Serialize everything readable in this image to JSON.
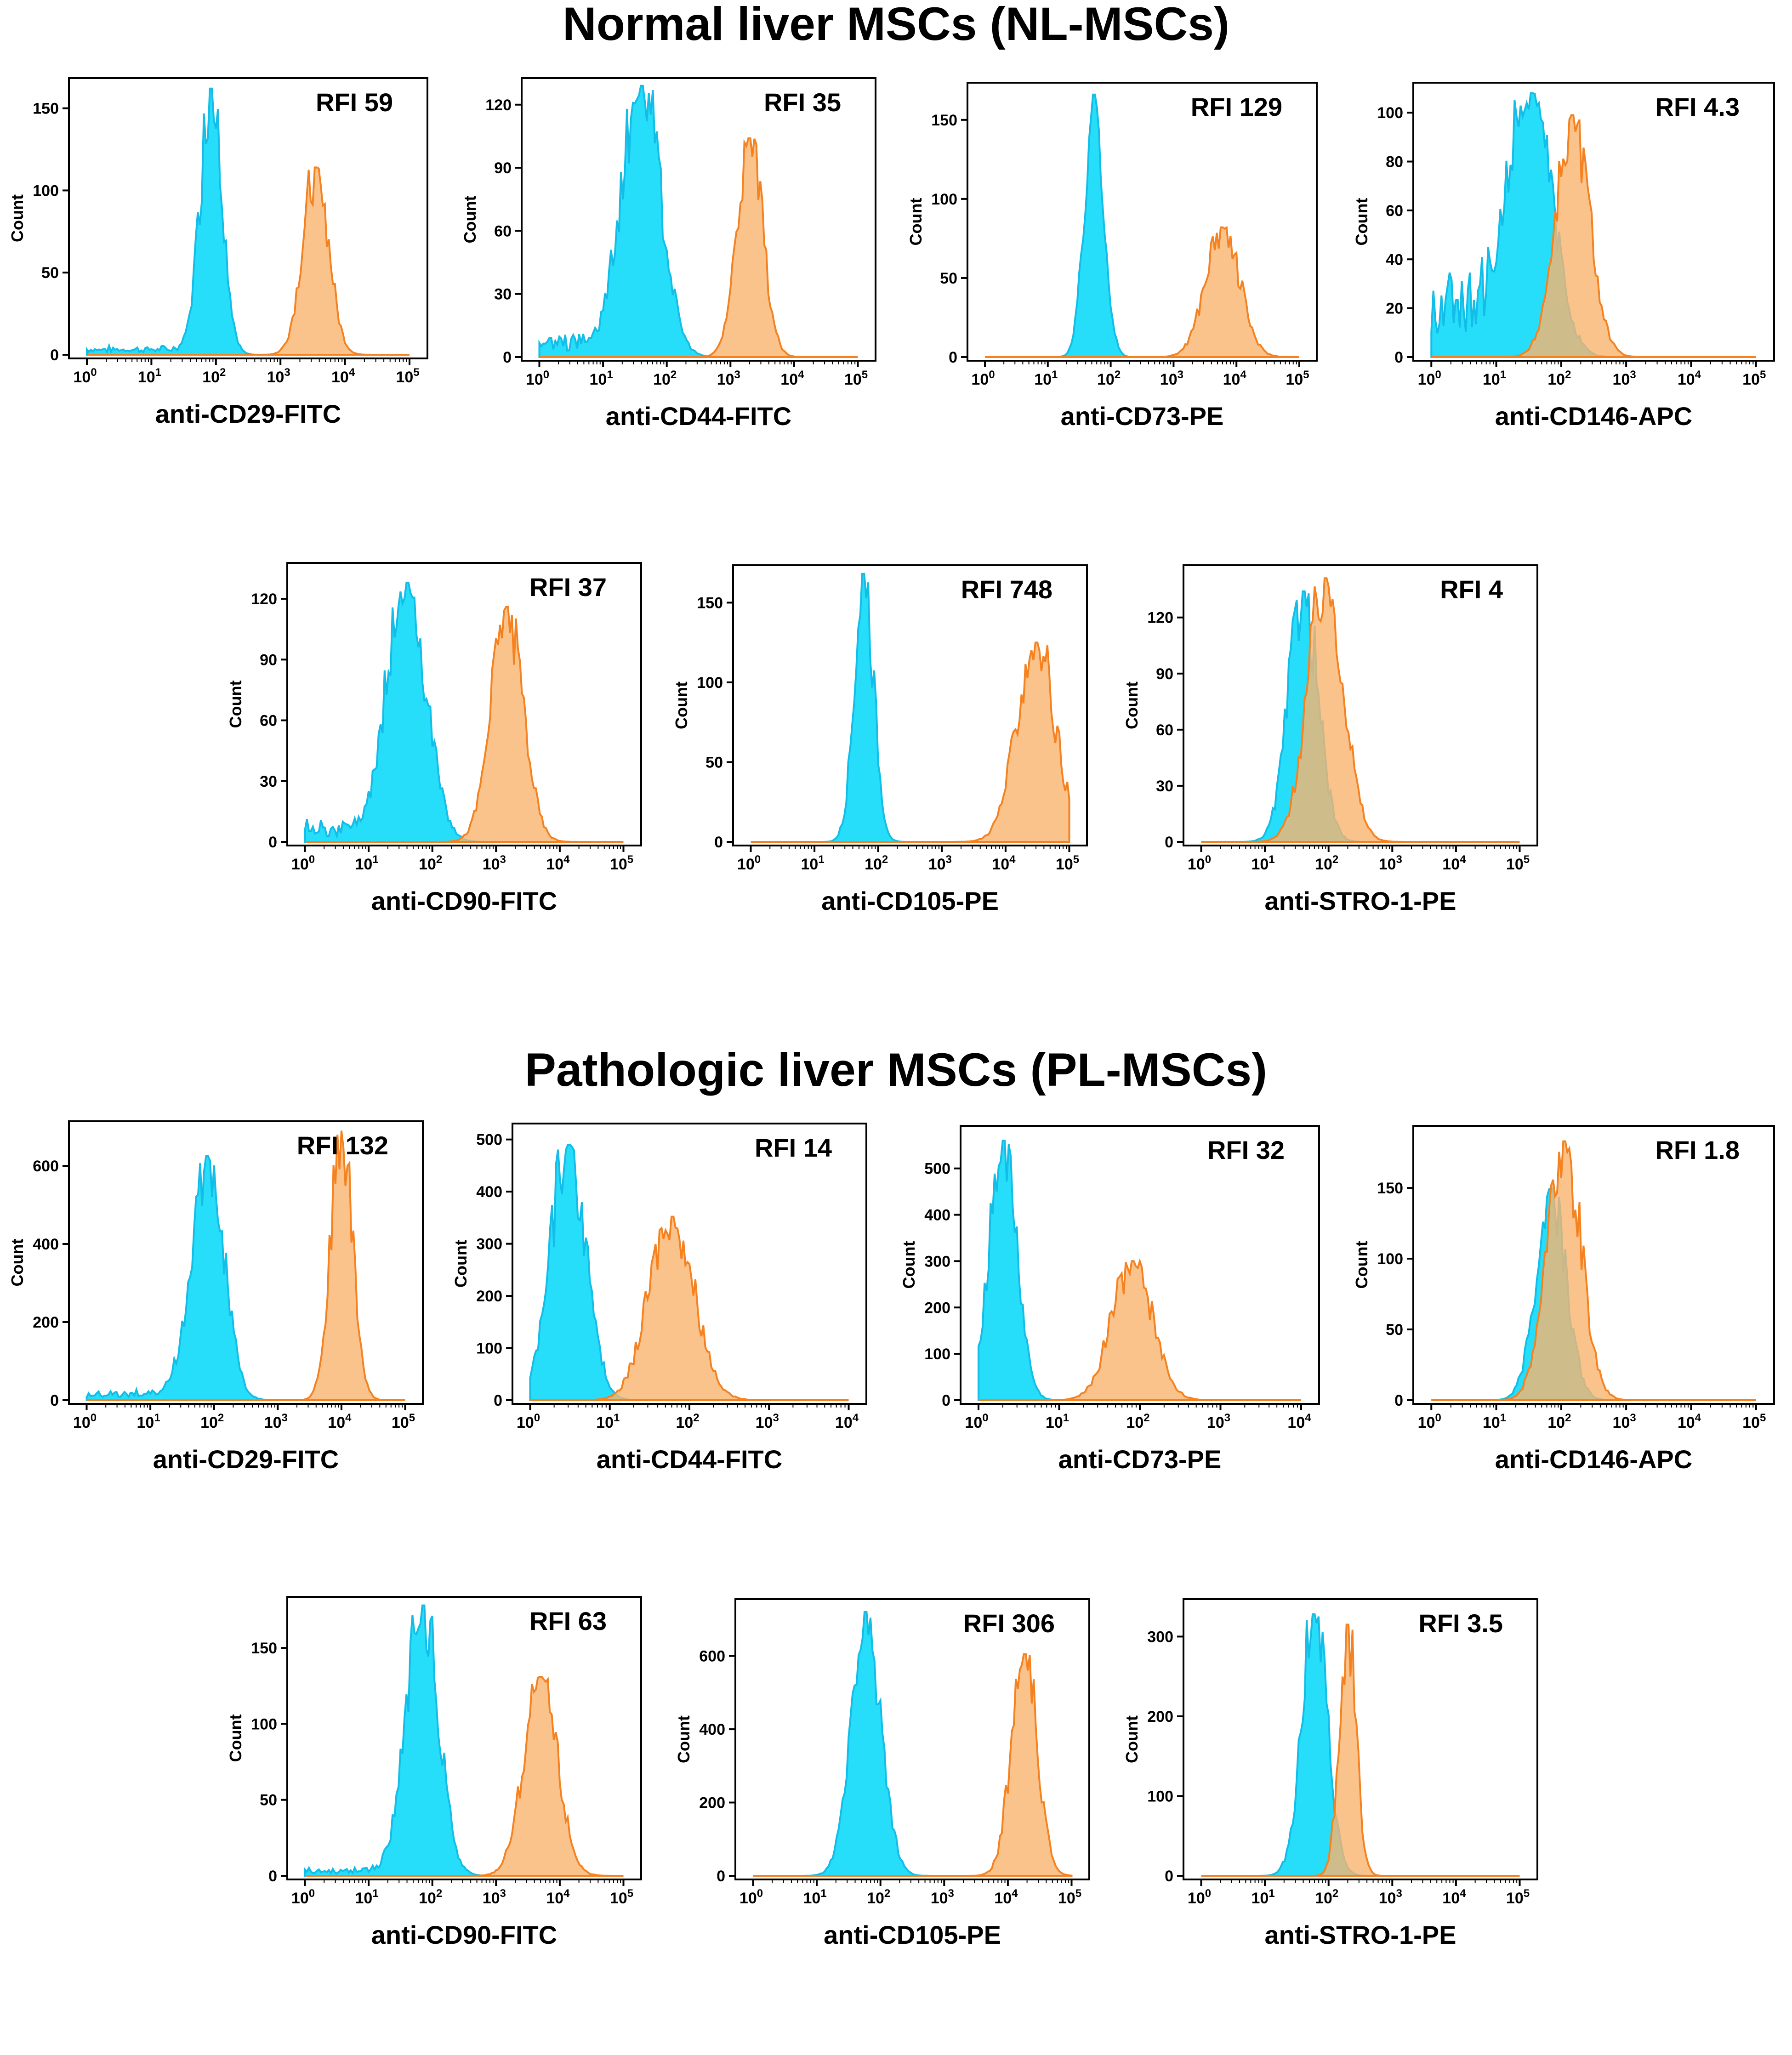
{
  "titles": {
    "normal": "Normal liver MSCs (NL-MSCs)",
    "pathologic": "Pathologic liver MSCs (PL-MSCs)"
  },
  "colors": {
    "control_fill": "#00d8f8",
    "control_line": "#12bde8",
    "stained_fill": "#f9b46f",
    "stained_line": "#f58220",
    "overlap": "#8fa990"
  },
  "chart_data": [
    {
      "type": "area",
      "group": "NL-MSCs",
      "annotation": "RFI 59",
      "xlabel": "anti-CD29-FITC",
      "ylabel": "Count",
      "x_scale": "log",
      "xlim": [
        1,
        100000
      ],
      "ylim": [
        0,
        165
      ],
      "yticks": [
        0,
        50,
        100,
        150
      ],
      "xticks": [
        1,
        10,
        100,
        1000,
        10000,
        100000
      ],
      "series": [
        {
          "role": "control",
          "peak_x": 85,
          "peak_y": 162,
          "spread": 0.17,
          "tail": 5
        },
        {
          "role": "stained",
          "peak_x": 3500,
          "peak_y": 114,
          "spread": 0.2,
          "tail": 0
        }
      ]
    },
    {
      "type": "area",
      "group": "NL-MSCs",
      "annotation": "RFI 35",
      "xlabel": "anti-CD44-FITC",
      "ylabel": "Count",
      "x_scale": "log",
      "xlim": [
        1,
        100000
      ],
      "ylim": [
        0,
        130
      ],
      "yticks": [
        0,
        30,
        60,
        90,
        120
      ],
      "xticks": [
        1,
        10,
        100,
        1000,
        10000,
        100000
      ],
      "series": [
        {
          "role": "control",
          "peak_x": 40,
          "peak_y": 129,
          "spread": 0.3,
          "tail": 10
        },
        {
          "role": "stained",
          "peak_x": 2000,
          "peak_y": 104,
          "spread": 0.2,
          "tail": 0
        }
      ]
    },
    {
      "type": "area",
      "group": "NL-MSCs",
      "annotation": "RFI 129",
      "xlabel": "anti-CD73-PE",
      "ylabel": "Count",
      "x_scale": "log",
      "xlim": [
        1,
        100000
      ],
      "ylim": [
        0,
        170
      ],
      "yticks": [
        0,
        50,
        100,
        150
      ],
      "xticks": [
        1,
        10,
        100,
        1000,
        10000,
        100000
      ],
      "series": [
        {
          "role": "control",
          "peak_x": 55,
          "peak_y": 166,
          "spread": 0.15,
          "tail": 0
        },
        {
          "role": "stained",
          "peak_x": 6000,
          "peak_y": 82,
          "spread": 0.27,
          "tail": 0
        }
      ]
    },
    {
      "type": "area",
      "group": "NL-MSCs",
      "annotation": "RFI 4.3",
      "xlabel": "anti-CD146-APC",
      "ylabel": "Count",
      "x_scale": "log",
      "xlim": [
        1,
        100000
      ],
      "ylim": [
        0,
        110
      ],
      "yticks": [
        0,
        20,
        40,
        60,
        80,
        100
      ],
      "xticks": [
        1,
        10,
        100,
        1000,
        10000,
        100000
      ],
      "series": [
        {
          "role": "control",
          "peak_x": 35,
          "peak_y": 108,
          "spread": 0.32,
          "tail": 30
        },
        {
          "role": "stained",
          "peak_x": 150,
          "peak_y": 99,
          "spread": 0.26,
          "tail": 0
        }
      ]
    },
    {
      "type": "area",
      "group": "NL-MSCs",
      "annotation": "RFI 37",
      "xlabel": "anti-CD90-FITC",
      "ylabel": "Count",
      "x_scale": "log",
      "xlim": [
        1,
        100000
      ],
      "ylim": [
        0,
        135
      ],
      "yticks": [
        0,
        30,
        60,
        90,
        120
      ],
      "xticks": [
        1,
        10,
        100,
        1000,
        10000,
        100000
      ],
      "series": [
        {
          "role": "control",
          "peak_x": 40,
          "peak_y": 128,
          "spread": 0.3,
          "tail": 10
        },
        {
          "role": "stained",
          "peak_x": 1500,
          "peak_y": 116,
          "spread": 0.25,
          "tail": 0
        }
      ]
    },
    {
      "type": "area",
      "group": "NL-MSCs",
      "annotation": "RFI 748",
      "xlabel": "anti-CD105-PE",
      "ylabel": "Count",
      "x_scale": "log",
      "xlim": [
        1,
        100000
      ],
      "ylim": [
        0,
        170
      ],
      "yticks": [
        0,
        50,
        100,
        150
      ],
      "xticks": [
        1,
        10,
        100,
        1000,
        10000,
        100000
      ],
      "series": [
        {
          "role": "control",
          "peak_x": 60,
          "peak_y": 168,
          "spread": 0.15,
          "tail": 0
        },
        {
          "role": "stained",
          "peak_x": 30000,
          "peak_y": 125,
          "spread": 0.3,
          "tail": 0
        }
      ]
    },
    {
      "type": "area",
      "group": "NL-MSCs",
      "annotation": "RFI 4",
      "xlabel": "anti-STRO-1-PE",
      "ylabel": "Count",
      "x_scale": "log",
      "xlim": [
        1,
        100000
      ],
      "ylim": [
        0,
        145
      ],
      "yticks": [
        0,
        30,
        60,
        90,
        120
      ],
      "xticks": [
        1,
        10,
        100,
        1000,
        10000,
        100000
      ],
      "series": [
        {
          "role": "control",
          "peak_x": 40,
          "peak_y": 134,
          "spread": 0.23,
          "tail": 0
        },
        {
          "role": "stained",
          "peak_x": 90,
          "peak_y": 141,
          "spread": 0.28,
          "tail": 0
        }
      ]
    },
    {
      "type": "area",
      "group": "PL-MSCs",
      "annotation": "RFI 132",
      "xlabel": "anti-CD29-FITC",
      "ylabel": "Count",
      "x_scale": "log",
      "xlim": [
        1,
        100000
      ],
      "ylim": [
        0,
        700
      ],
      "yticks": [
        0,
        200,
        400,
        600
      ],
      "xticks": [
        1,
        10,
        100,
        1000,
        10000,
        100000
      ],
      "series": [
        {
          "role": "control",
          "peak_x": 80,
          "peak_y": 625,
          "spread": 0.25,
          "tail": 25
        },
        {
          "role": "stained",
          "peak_x": 10000,
          "peak_y": 690,
          "spread": 0.17,
          "tail": 0
        }
      ]
    },
    {
      "type": "area",
      "group": "PL-MSCs",
      "annotation": "RFI 14",
      "xlabel": "anti-CD44-FITC",
      "ylabel": "Count",
      "x_scale": "log",
      "xlim": [
        1,
        10000
      ],
      "ylim": [
        0,
        520
      ],
      "yticks": [
        0,
        100,
        200,
        300,
        400,
        500
      ],
      "xticks": [
        1,
        10,
        100,
        1000,
        10000
      ],
      "series": [
        {
          "role": "control",
          "peak_x": 3,
          "peak_y": 490,
          "spread": 0.22,
          "tail": 0
        },
        {
          "role": "stained",
          "peak_x": 60,
          "peak_y": 352,
          "spread": 0.28,
          "tail": 0
        }
      ]
    },
    {
      "type": "area",
      "group": "PL-MSCs",
      "annotation": "RFI 32",
      "xlabel": "anti-CD73-PE",
      "ylabel": "Count",
      "x_scale": "log",
      "xlim": [
        1,
        10000
      ],
      "ylim": [
        0,
        580
      ],
      "yticks": [
        0,
        100,
        200,
        300,
        400,
        500
      ],
      "xticks": [
        1,
        10,
        100,
        1000,
        10000
      ],
      "series": [
        {
          "role": "control",
          "peak_x": 2,
          "peak_y": 560,
          "spread": 0.17,
          "tail": 0
        },
        {
          "role": "stained",
          "peak_x": 80,
          "peak_y": 300,
          "spread": 0.25,
          "tail": 0
        }
      ]
    },
    {
      "type": "area",
      "group": "PL-MSCs",
      "annotation": "RFI 1.8",
      "xlabel": "anti-CD146-APC",
      "ylabel": "Count",
      "x_scale": "log",
      "xlim": [
        1,
        100000
      ],
      "ylim": [
        0,
        190
      ],
      "yticks": [
        0,
        50,
        100,
        150
      ],
      "xticks": [
        1,
        10,
        100,
        1000,
        10000,
        100000
      ],
      "series": [
        {
          "role": "control",
          "peak_x": 70,
          "peak_y": 150,
          "spread": 0.23,
          "tail": 0
        },
        {
          "role": "stained",
          "peak_x": 110,
          "peak_y": 183,
          "spread": 0.26,
          "tail": 0
        }
      ]
    },
    {
      "type": "area",
      "group": "PL-MSCs",
      "annotation": "RFI 63",
      "xlabel": "anti-CD90-FITC",
      "ylabel": "Count",
      "x_scale": "log",
      "xlim": [
        1,
        100000
      ],
      "ylim": [
        0,
        180
      ],
      "yticks": [
        0,
        50,
        100,
        150
      ],
      "xticks": [
        1,
        10,
        100,
        1000,
        10000,
        100000
      ],
      "series": [
        {
          "role": "control",
          "peak_x": 70,
          "peak_y": 178,
          "spread": 0.25,
          "tail": 5
        },
        {
          "role": "stained",
          "peak_x": 5000,
          "peak_y": 131,
          "spread": 0.26,
          "tail": 0
        }
      ]
    },
    {
      "type": "area",
      "group": "PL-MSCs",
      "annotation": "RFI 306",
      "xlabel": "anti-CD105-PE",
      "ylabel": "Count",
      "x_scale": "log",
      "xlim": [
        1,
        100000
      ],
      "ylim": [
        0,
        740
      ],
      "yticks": [
        0,
        200,
        400,
        600
      ],
      "xticks": [
        1,
        10,
        100,
        1000,
        10000,
        100000
      ],
      "series": [
        {
          "role": "control",
          "peak_x": 60,
          "peak_y": 720,
          "spread": 0.23,
          "tail": 0
        },
        {
          "role": "stained",
          "peak_x": 18000,
          "peak_y": 605,
          "spread": 0.2,
          "tail": 0
        }
      ]
    },
    {
      "type": "area",
      "group": "PL-MSCs",
      "annotation": "RFI 3.5",
      "xlabel": "anti-STRO-1-PE",
      "ylabel": "Count",
      "x_scale": "log",
      "xlim": [
        1,
        100000
      ],
      "ylim": [
        0,
        340
      ],
      "yticks": [
        0,
        100,
        200,
        300
      ],
      "xticks": [
        1,
        10,
        100,
        1000,
        10000,
        100000
      ],
      "series": [
        {
          "role": "control",
          "peak_x": 60,
          "peak_y": 328,
          "spread": 0.2,
          "tail": 0
        },
        {
          "role": "stained",
          "peak_x": 200,
          "peak_y": 315,
          "spread": 0.13,
          "tail": 0
        }
      ]
    }
  ]
}
